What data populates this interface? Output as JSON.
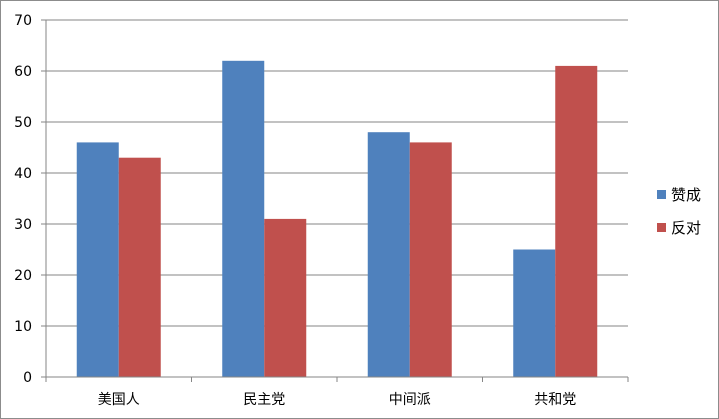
{
  "chart_data": {
    "type": "bar",
    "categories": [
      "美国人",
      "民主党",
      "中间派",
      "共和党"
    ],
    "series": [
      {
        "name": "赞成",
        "values": [
          46,
          62,
          48,
          25
        ],
        "color": "#4f81bd"
      },
      {
        "name": "反对",
        "values": [
          43,
          31,
          46,
          61
        ],
        "color": "#c0504d"
      }
    ],
    "title": "",
    "xlabel": "",
    "ylabel": "",
    "ylim": [
      0,
      70
    ],
    "yticks": [
      "0",
      "10",
      "20",
      "30",
      "40",
      "50",
      "60",
      "70"
    ],
    "grid": true,
    "legend": "right"
  }
}
